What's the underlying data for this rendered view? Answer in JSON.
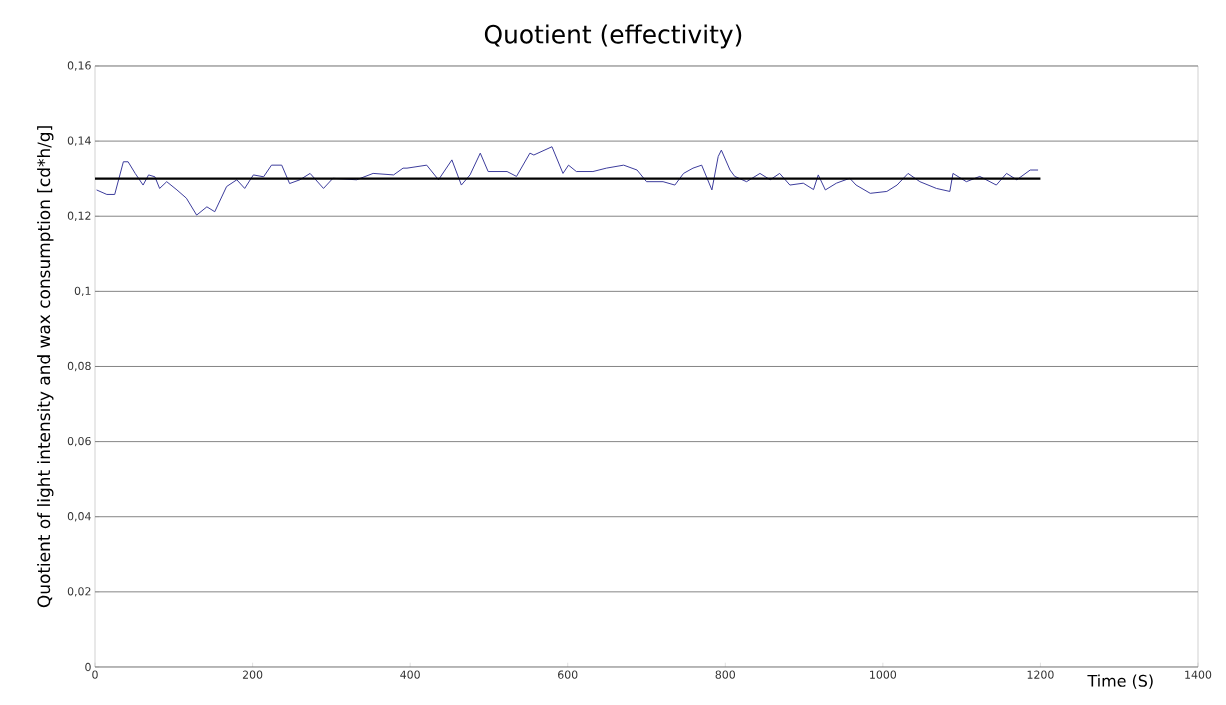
{
  "chart_data": {
    "type": "line",
    "title": "Quotient (effectivity)",
    "xlabel": "Time (S)",
    "ylabel": "Quotient of light intensity and wax consumption [cd*h/g]",
    "xlim": [
      0,
      1400
    ],
    "xticks": [
      0,
      200,
      400,
      600,
      800,
      1000,
      1200,
      1400
    ],
    "ylim": [
      0,
      0.16
    ],
    "yticks": [
      {
        "value": 0,
        "label": "0"
      },
      {
        "value": 0.02,
        "label": "0,02"
      },
      {
        "value": 0.04,
        "label": "0,04"
      },
      {
        "value": 0.06,
        "label": "0,06"
      },
      {
        "value": 0.08,
        "label": "0,08"
      },
      {
        "value": 0.1,
        "label": "0,1"
      },
      {
        "value": 0.12,
        "label": "0,12"
      },
      {
        "value": 0.14,
        "label": "0,14"
      },
      {
        "value": 0.16,
        "label": "0,16"
      }
    ],
    "grid": "y",
    "marker": "none",
    "line_style": "solid",
    "series": [
      {
        "color": "#3b3b9c",
        "x": [
          2,
          15,
          25,
          36,
          42,
          51,
          61,
          68,
          76,
          82,
          91,
          104,
          116,
          129,
          142,
          152,
          167,
          180,
          190,
          201,
          214,
          224,
          237,
          247,
          260,
          273,
          290,
          302,
          332,
          353,
          379,
          391,
          396,
          421,
          436,
          453,
          465,
          476,
          489,
          499,
          523,
          535,
          552,
          557,
          580,
          594,
          601,
          611,
          632,
          649,
          671,
          688,
          700,
          721,
          736,
          747,
          759,
          770,
          783,
          791,
          795,
          806,
          812,
          827,
          844,
          857,
          869,
          882,
          899,
          912,
          918,
          927,
          941,
          958,
          966,
          984,
          1005,
          1018,
          1032,
          1047,
          1068,
          1085,
          1089,
          1106,
          1123,
          1144,
          1157,
          1170,
          1187,
          1197
        ],
        "values": [
          0.127,
          0.1258,
          0.1258,
          0.1345,
          0.1345,
          0.1314,
          0.1283,
          0.131,
          0.1305,
          0.1274,
          0.1292,
          0.127,
          0.1248,
          0.1203,
          0.1225,
          0.1212,
          0.1279,
          0.1297,
          0.1274,
          0.131,
          0.1305,
          0.1336,
          0.1336,
          0.1287,
          0.1297,
          0.1314,
          0.1274,
          0.1301,
          0.1297,
          0.1314,
          0.131,
          0.1328,
          0.1328,
          0.1336,
          0.1297,
          0.135,
          0.1283,
          0.131,
          0.1368,
          0.1319,
          0.1319,
          0.1306,
          0.1368,
          0.1363,
          0.1385,
          0.1314,
          0.1336,
          0.1319,
          0.1319,
          0.1328,
          0.1336,
          0.1323,
          0.1292,
          0.1292,
          0.1283,
          0.1314,
          0.1328,
          0.1336,
          0.127,
          0.1359,
          0.1376,
          0.1323,
          0.1306,
          0.1292,
          0.1314,
          0.1297,
          0.1314,
          0.1283,
          0.1288,
          0.1271,
          0.131,
          0.127,
          0.1288,
          0.1301,
          0.1283,
          0.1261,
          0.1266,
          0.1283,
          0.1314,
          0.1292,
          0.1274,
          0.1266,
          0.1314,
          0.1292,
          0.1306,
          0.1283,
          0.1314,
          0.1297,
          0.1323,
          0.1323
        ]
      },
      {
        "color": "#000000",
        "x": [
          0,
          1200
        ],
        "values": [
          0.13,
          0.13
        ]
      }
    ]
  }
}
